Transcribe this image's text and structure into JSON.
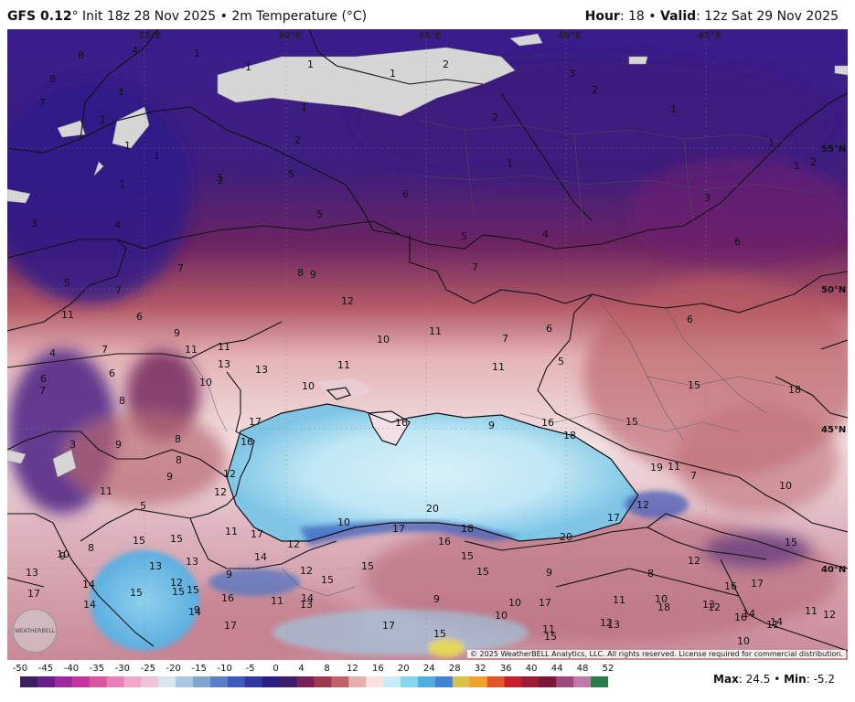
{
  "header": {
    "model": "GFS 0.12",
    "deg": "°",
    "init": "Init 18z 28 Nov 2025",
    "sep": "•",
    "field": "2m Temperature (°C)",
    "hour_label": "Hour",
    "hour_value": ": 18",
    "valid_label": "Valid",
    "valid_value": ": 12z Sat 29 Nov 2025"
  },
  "map": {
    "lon_labels": [
      "25°E",
      "30°E",
      "35°E",
      "40°E",
      "45°E"
    ],
    "lat_labels": [
      "55°N",
      "50°N",
      "45°N",
      "40°N"
    ],
    "values": [
      "8",
      "4",
      "1",
      "-1",
      "1",
      "2",
      "1",
      "3",
      "8",
      "1",
      "2",
      "1",
      "7",
      "1",
      "1",
      "1",
      "2",
      "1",
      "1",
      "2",
      "1",
      "1",
      "3",
      "2",
      "5",
      "1",
      "3",
      "4",
      "6",
      "2",
      "3",
      "5",
      "5",
      "4",
      "6",
      "5",
      "7",
      "8",
      "9",
      "7",
      "7",
      "6",
      "9",
      "12",
      "11",
      "11",
      "10",
      "7",
      "6",
      "6",
      "11",
      "7",
      "11",
      "13",
      "13",
      "11",
      "10",
      "11",
      "5",
      "6",
      "6",
      "4",
      "7",
      "8",
      "10",
      "15",
      "18",
      "17",
      "16",
      "9",
      "16",
      "15",
      "18",
      "16",
      "9",
      "8",
      "3",
      "8",
      "9",
      "12",
      "12",
      "12",
      "19",
      "11",
      "7",
      "10",
      "11",
      "5",
      "10",
      "20",
      "18",
      "20",
      "17",
      "15",
      "11",
      "12",
      "17",
      "16",
      "15",
      "15",
      "13",
      "15",
      "15",
      "13",
      "17",
      "14",
      "12",
      "8",
      "12",
      "9",
      "14",
      "15",
      "9",
      "8",
      "12",
      "10",
      "15",
      "15",
      "9",
      "14",
      "13",
      "15",
      "16",
      "11",
      "9",
      "13",
      "10",
      "17",
      "13",
      "14",
      "12",
      "14",
      "9",
      "11",
      "16",
      "15",
      "17",
      "18",
      "17",
      "17",
      "17",
      "10",
      "12",
      "13",
      "11",
      "16",
      "11",
      "11",
      "15",
      "10",
      "14",
      "12",
      "15",
      "10",
      "14",
      "9",
      "9"
    ],
    "copyright": "© 2025 WeatherBELL Analytics, LLC. All rights reserved. License required for commercial distribution.",
    "logo_text": "WEATHERBELL"
  },
  "legend": {
    "ticks": [
      "-50",
      "-45",
      "-40",
      "-35",
      "-30",
      "-25",
      "-20",
      "-15",
      "-10",
      "-5",
      "0",
      "4",
      "8",
      "12",
      "16",
      "20",
      "24",
      "28",
      "32",
      "36",
      "40",
      "44",
      "48",
      "52"
    ],
    "colors": [
      "#3b1f63",
      "#6a1e8a",
      "#9b2aa0",
      "#c0369e",
      "#d9559f",
      "#e880b8",
      "#f0a8c8",
      "#f2c3d8",
      "#d9e6ee",
      "#a9c7e0",
      "#7fa6d3",
      "#5b7fc7",
      "#3f5ab8",
      "#2f39a0",
      "#2a1f80",
      "#3b1d6a",
      "#7a2058",
      "#9c3a50",
      "#c0626a",
      "#e3b0b0",
      "#f7e2e2",
      "#c8ecf6",
      "#86d4ee",
      "#53aee0",
      "#3e86cf",
      "#d9c14a",
      "#f0a02c",
      "#e4562a",
      "#c4202e",
      "#9e1b34",
      "#7a1838",
      "#a04880",
      "#c07aa8",
      "#2d7a4a"
    ],
    "max_label": "Max",
    "max_value": ": 24.5",
    "min_label": "Min",
    "min_value": ": -5.2"
  }
}
